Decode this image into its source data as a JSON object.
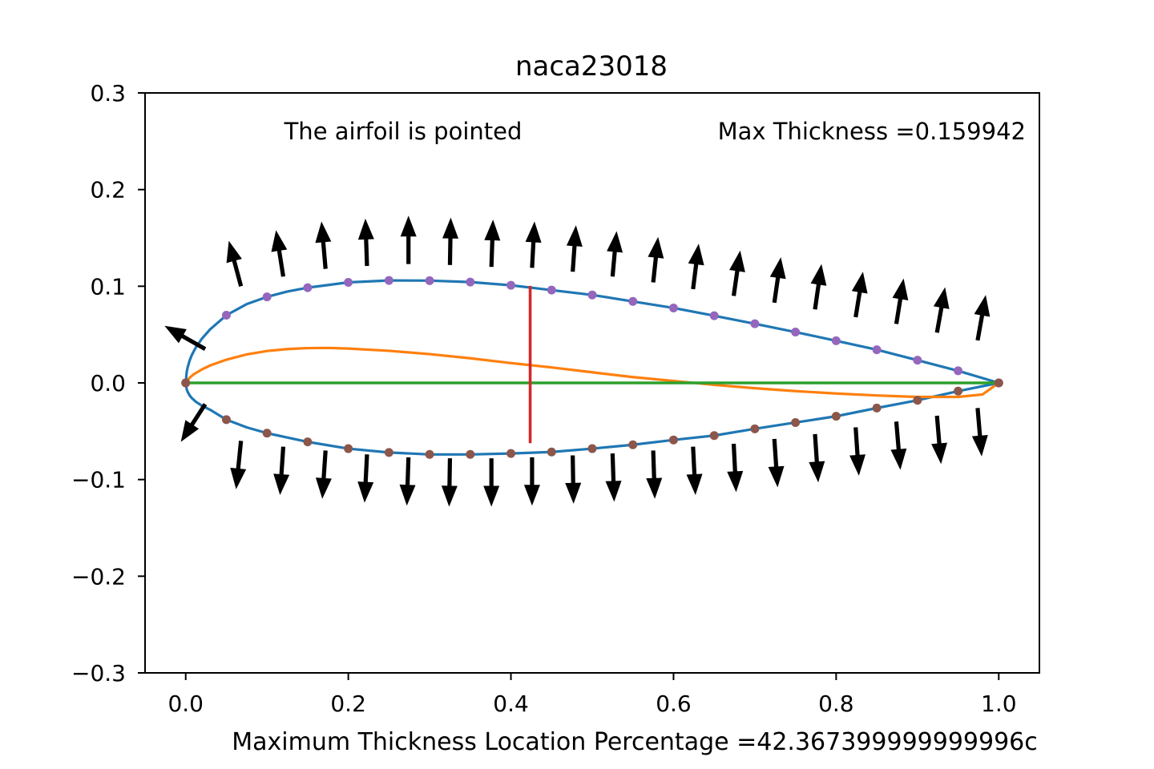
{
  "chart_data": {
    "type": "line",
    "title": "naca23018",
    "xlabel": "Maximum Thickness Location Percentage =42.367399999999996c",
    "ylabel": "",
    "xlim": [
      -0.05,
      1.05
    ],
    "ylim": [
      -0.3,
      0.3
    ],
    "xticks": [
      0.0,
      0.2,
      0.4,
      0.6,
      0.8,
      1.0
    ],
    "xtick_labels": [
      "0.0",
      "0.2",
      "0.4",
      "0.6",
      "0.8",
      "1.0"
    ],
    "yticks": [
      0.3,
      0.2,
      0.1,
      0.0,
      -0.1,
      -0.2,
      -0.3
    ],
    "ytick_labels": [
      "0.3",
      "0.2",
      "0.1",
      "0.0",
      "−0.1",
      "−0.2",
      "−0.3"
    ],
    "grid": false,
    "annotations": {
      "pointed": "The airfoil is pointed",
      "max_thickness": "Max Thickness =0.159942"
    },
    "max_thickness_location": 0.423674,
    "max_thickness_line": {
      "x": 0.423674,
      "y_top": 0.1004,
      "y_bottom": -0.0624
    },
    "colors": {
      "surface": "#1f77b4",
      "camber": "#ff7f0e",
      "chord": "#2ca02c",
      "thickness_line": "#d62728",
      "upper_points": "#9467bd",
      "lower_points": "#8c564b",
      "arrows": "#000000"
    },
    "upper_surface": {
      "x": [
        0.0,
        0.00125,
        0.0025,
        0.005,
        0.0075,
        0.0125,
        0.02,
        0.03,
        0.05,
        0.075,
        0.1,
        0.125,
        0.15,
        0.2,
        0.25,
        0.3,
        0.35,
        0.4,
        0.45,
        0.5,
        0.55,
        0.6,
        0.65,
        0.7,
        0.75,
        0.8,
        0.85,
        0.9,
        0.95,
        1.0
      ],
      "y": [
        0.0,
        0.0113,
        0.0164,
        0.0235,
        0.0288,
        0.0368,
        0.0458,
        0.0554,
        0.07,
        0.0815,
        0.089,
        0.0945,
        0.0985,
        0.104,
        0.106,
        0.1058,
        0.1043,
        0.101,
        0.096,
        0.091,
        0.0843,
        0.0775,
        0.0695,
        0.0612,
        0.0526,
        0.0436,
        0.0343,
        0.0235,
        0.0125,
        0.0
      ]
    },
    "lower_surface": {
      "x": [
        0.0,
        0.00125,
        0.0025,
        0.005,
        0.0075,
        0.0125,
        0.02,
        0.03,
        0.05,
        0.075,
        0.1,
        0.125,
        0.15,
        0.2,
        0.25,
        0.3,
        0.35,
        0.4,
        0.45,
        0.5,
        0.55,
        0.6,
        0.65,
        0.7,
        0.75,
        0.8,
        0.85,
        0.9,
        0.95,
        1.0
      ],
      "y": [
        0.0,
        -0.0067,
        -0.0094,
        -0.0131,
        -0.0157,
        -0.0195,
        -0.0236,
        -0.0278,
        -0.038,
        -0.046,
        -0.052,
        -0.0565,
        -0.061,
        -0.068,
        -0.072,
        -0.074,
        -0.074,
        -0.073,
        -0.0715,
        -0.068,
        -0.064,
        -0.059,
        -0.0545,
        -0.0475,
        -0.041,
        -0.0345,
        -0.026,
        -0.018,
        -0.0085,
        0.0
      ]
    },
    "camber_line": {
      "x": [
        0.0,
        0.005,
        0.01,
        0.02,
        0.03,
        0.05,
        0.075,
        0.1,
        0.125,
        0.15,
        0.175,
        0.2,
        0.25,
        0.3,
        0.35,
        0.4,
        0.45,
        0.5,
        0.55,
        0.6,
        0.65,
        0.7,
        0.75,
        0.8,
        0.85,
        0.9,
        0.95,
        0.98,
        1.0
      ],
      "y": [
        0.0,
        0.0055,
        0.009,
        0.014,
        0.018,
        0.024,
        0.0295,
        0.033,
        0.035,
        0.036,
        0.0362,
        0.0355,
        0.0332,
        0.0298,
        0.0255,
        0.0205,
        0.016,
        0.011,
        0.006,
        0.002,
        -0.002,
        -0.0055,
        -0.0085,
        -0.011,
        -0.013,
        -0.0145,
        -0.0145,
        -0.012,
        0.0
      ]
    },
    "chord_line": {
      "x": [
        0.0,
        1.0
      ],
      "y": [
        0.0,
        0.0
      ]
    },
    "upper_points": {
      "x": [
        0.0,
        0.05,
        0.1,
        0.15,
        0.2,
        0.25,
        0.3,
        0.35,
        0.4,
        0.45,
        0.5,
        0.55,
        0.6,
        0.65,
        0.7,
        0.75,
        0.8,
        0.85,
        0.9,
        0.95,
        1.0
      ],
      "y": [
        0.0,
        0.07,
        0.089,
        0.0985,
        0.104,
        0.106,
        0.1058,
        0.1043,
        0.101,
        0.096,
        0.091,
        0.0843,
        0.0775,
        0.0695,
        0.0612,
        0.0526,
        0.0436,
        0.0343,
        0.0235,
        0.0125,
        0.0
      ]
    },
    "lower_points": {
      "x": [
        0.0,
        0.05,
        0.1,
        0.15,
        0.2,
        0.25,
        0.3,
        0.35,
        0.4,
        0.45,
        0.5,
        0.55,
        0.6,
        0.65,
        0.7,
        0.75,
        0.8,
        0.85,
        0.9,
        0.95,
        1.0
      ],
      "y": [
        0.0,
        -0.038,
        -0.052,
        -0.061,
        -0.068,
        -0.072,
        -0.074,
        -0.074,
        -0.073,
        -0.0715,
        -0.068,
        -0.064,
        -0.059,
        -0.0545,
        -0.0475,
        -0.041,
        -0.0345,
        -0.026,
        -0.018,
        -0.0085,
        0.0
      ]
    },
    "normal_vectors": {
      "upper": [
        {
          "x": 0.024,
          "y": 0.035,
          "dx": -0.05,
          "dy": 0.024
        },
        {
          "x": 0.068,
          "y": 0.1,
          "dx": -0.015,
          "dy": 0.047
        },
        {
          "x": 0.12,
          "y": 0.11,
          "dx": -0.009,
          "dy": 0.048
        },
        {
          "x": 0.172,
          "y": 0.118,
          "dx": -0.005,
          "dy": 0.049
        },
        {
          "x": 0.223,
          "y": 0.121,
          "dx": -0.002,
          "dy": 0.049
        },
        {
          "x": 0.274,
          "y": 0.123,
          "dx": 0.0,
          "dy": 0.05
        },
        {
          "x": 0.325,
          "y": 0.122,
          "dx": 0.001,
          "dy": 0.049
        },
        {
          "x": 0.376,
          "y": 0.12,
          "dx": 0.002,
          "dy": 0.049
        },
        {
          "x": 0.426,
          "y": 0.119,
          "dx": 0.003,
          "dy": 0.048
        },
        {
          "x": 0.476,
          "y": 0.115,
          "dx": 0.004,
          "dy": 0.048
        },
        {
          "x": 0.525,
          "y": 0.11,
          "dx": 0.005,
          "dy": 0.047
        },
        {
          "x": 0.575,
          "y": 0.104,
          "dx": 0.006,
          "dy": 0.047
        },
        {
          "x": 0.624,
          "y": 0.097,
          "dx": 0.007,
          "dy": 0.047
        },
        {
          "x": 0.674,
          "y": 0.09,
          "dx": 0.008,
          "dy": 0.047
        },
        {
          "x": 0.724,
          "y": 0.083,
          "dx": 0.008,
          "dy": 0.047
        },
        {
          "x": 0.774,
          "y": 0.076,
          "dx": 0.008,
          "dy": 0.047
        },
        {
          "x": 0.824,
          "y": 0.068,
          "dx": 0.009,
          "dy": 0.047
        },
        {
          "x": 0.874,
          "y": 0.061,
          "dx": 0.009,
          "dy": 0.047
        },
        {
          "x": 0.924,
          "y": 0.052,
          "dx": 0.01,
          "dy": 0.047
        },
        {
          "x": 0.974,
          "y": 0.044,
          "dx": 0.01,
          "dy": 0.047
        }
      ],
      "lower": [
        {
          "x": 0.024,
          "y": -0.022,
          "dx": -0.03,
          "dy": -0.039
        },
        {
          "x": 0.068,
          "y": -0.06,
          "dx": -0.006,
          "dy": -0.05
        },
        {
          "x": 0.12,
          "y": -0.066,
          "dx": -0.004,
          "dy": -0.05
        },
        {
          "x": 0.172,
          "y": -0.07,
          "dx": -0.004,
          "dy": -0.05
        },
        {
          "x": 0.223,
          "y": -0.074,
          "dx": -0.003,
          "dy": -0.05
        },
        {
          "x": 0.274,
          "y": -0.077,
          "dx": -0.002,
          "dy": -0.05
        },
        {
          "x": 0.325,
          "y": -0.078,
          "dx": -0.001,
          "dy": -0.05
        },
        {
          "x": 0.376,
          "y": -0.078,
          "dx": 0.0,
          "dy": -0.05
        },
        {
          "x": 0.426,
          "y": -0.077,
          "dx": 0.0,
          "dy": -0.05
        },
        {
          "x": 0.476,
          "y": -0.075,
          "dx": 0.001,
          "dy": -0.05
        },
        {
          "x": 0.525,
          "y": -0.073,
          "dx": 0.002,
          "dy": -0.05
        },
        {
          "x": 0.575,
          "y": -0.07,
          "dx": 0.002,
          "dy": -0.05
        },
        {
          "x": 0.624,
          "y": -0.066,
          "dx": 0.003,
          "dy": -0.05
        },
        {
          "x": 0.674,
          "y": -0.063,
          "dx": 0.003,
          "dy": -0.05
        },
        {
          "x": 0.724,
          "y": -0.058,
          "dx": 0.004,
          "dy": -0.05
        },
        {
          "x": 0.774,
          "y": -0.053,
          "dx": 0.004,
          "dy": -0.05
        },
        {
          "x": 0.824,
          "y": -0.046,
          "dx": 0.004,
          "dy": -0.05
        },
        {
          "x": 0.874,
          "y": -0.04,
          "dx": 0.005,
          "dy": -0.05
        },
        {
          "x": 0.924,
          "y": -0.034,
          "dx": 0.005,
          "dy": -0.05
        },
        {
          "x": 0.974,
          "y": -0.026,
          "dx": 0.005,
          "dy": -0.05
        }
      ]
    }
  }
}
